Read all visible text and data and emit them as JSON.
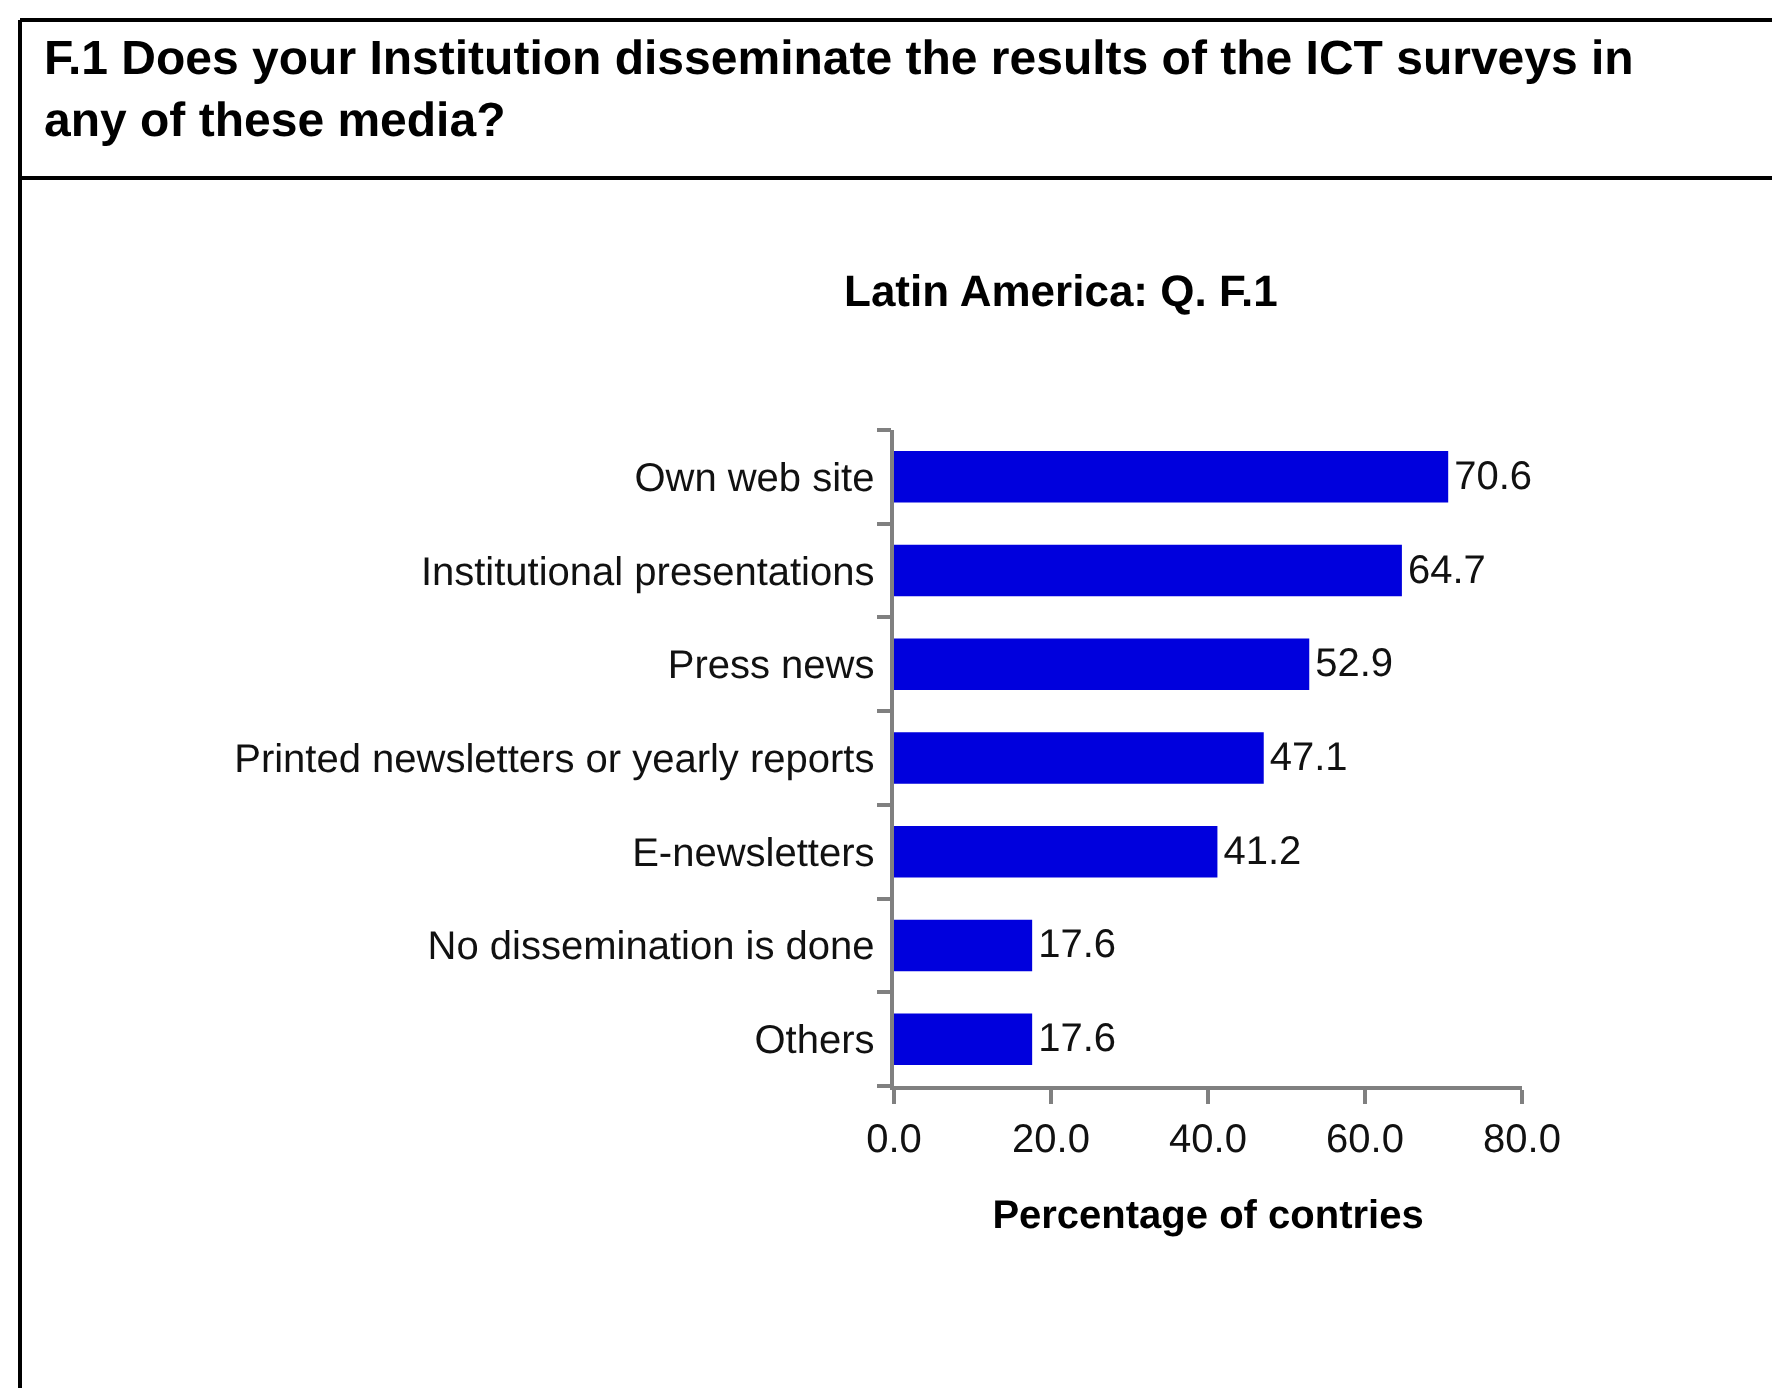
{
  "chart_data": {
    "type": "bar",
    "orientation": "horizontal",
    "title": "F.1 Does your Institution disseminate the results of the ICT surveys in any of these media?",
    "subtitle": "Latin America: Q. F.1",
    "xlabel": "Percentage of contries",
    "categories": [
      "Own web site",
      "Institutional presentations",
      "Press news",
      "Printed newsletters or yearly reports",
      "E-newsletters",
      "No dissemination is done",
      "Others"
    ],
    "values": [
      70.6,
      64.7,
      52.9,
      47.1,
      41.2,
      17.6,
      17.6
    ],
    "color": "#0000dd",
    "xlim": [
      0,
      80
    ],
    "xticks": [
      {
        "value": 0,
        "label": "0.0"
      },
      {
        "value": 20,
        "label": "20.0"
      },
      {
        "value": 40,
        "label": "40.0"
      },
      {
        "value": 60,
        "label": "60.0"
      },
      {
        "value": 80,
        "label": "80.0"
      }
    ],
    "data_labels": true
  }
}
